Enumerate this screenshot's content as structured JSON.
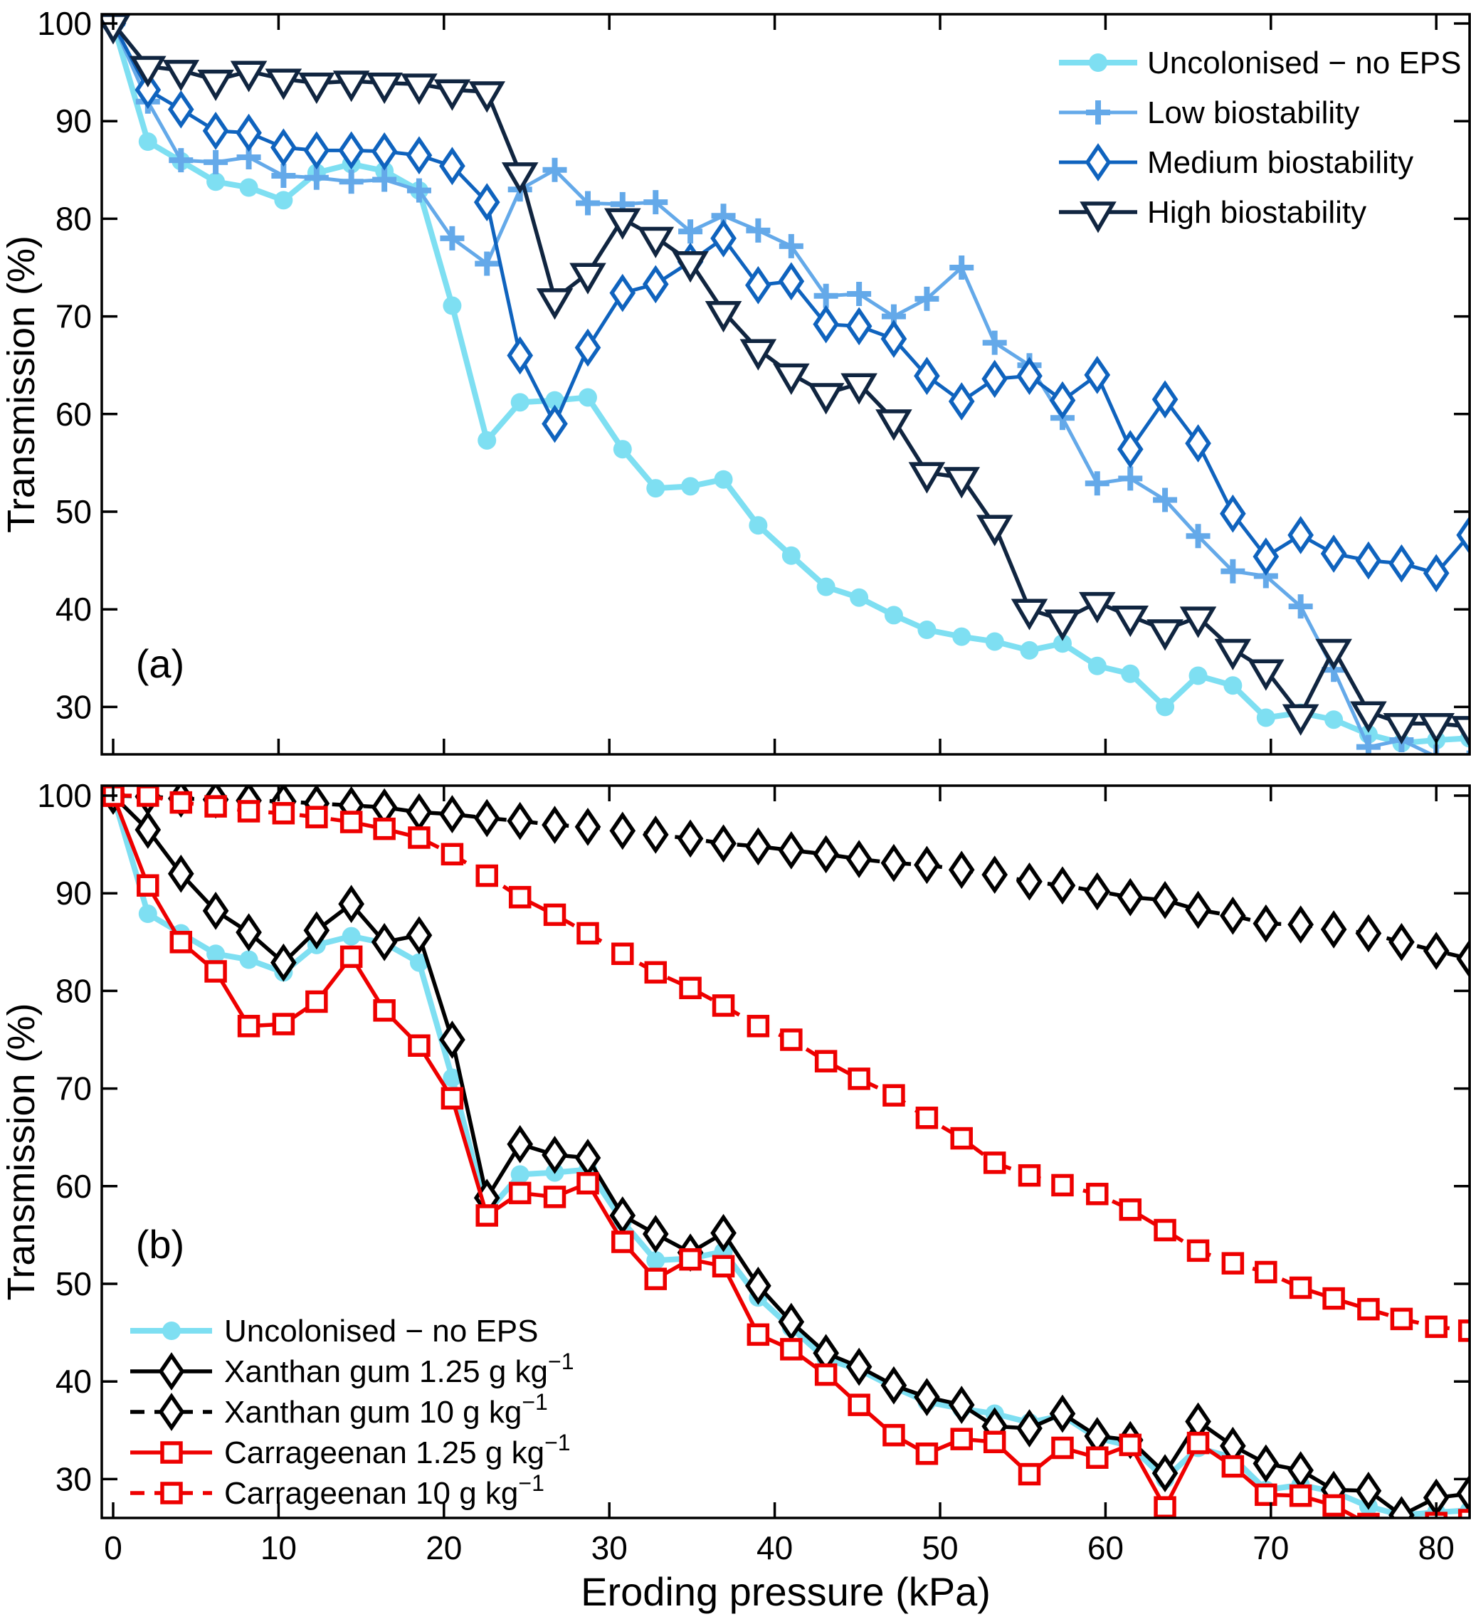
{
  "figure": {
    "background": "#ffffff",
    "x_axis_label": "Eroding pressure (kPa)",
    "y_axis_label": "Transmission (%)"
  },
  "chart_data": {
    "type": "line",
    "x_label": "Eroding pressure (kPa)",
    "y_label": "Transmission (%)",
    "x_ticks": [
      0,
      10,
      20,
      30,
      40,
      50,
      60,
      70,
      80
    ],
    "y_ticks": [
      30,
      40,
      50,
      60,
      70,
      80,
      90,
      100
    ],
    "x_lim": [
      0,
      82
    ],
    "y_lim": [
      25,
      101
    ],
    "grid": false,
    "x_kpa": [
      0,
      2.1,
      4.1,
      6.2,
      8.2,
      10.3,
      12.3,
      14.4,
      16.4,
      18.5,
      20.5,
      22.6,
      24.6,
      26.7,
      28.7,
      30.8,
      32.8,
      34.9,
      36.9,
      39,
      41,
      43.1,
      45.1,
      47.2,
      49.2,
      51.3,
      53.3,
      55.4,
      57.4,
      59.5,
      61.5,
      63.6,
      65.6,
      67.7,
      69.7,
      71.8,
      73.8,
      75.9,
      77.9,
      80,
      82
    ],
    "panel_a": {
      "tag": "(a)",
      "show_x_tick_labels": false,
      "legend_position": "top-right",
      "series": [
        {
          "id": "uncolonised",
          "label": "Uncolonised − no EPS",
          "color": "#7EDFF2",
          "marker": "circle",
          "dashed": false,
          "line_width": 8,
          "values": [
            100,
            87.9,
            85.9,
            83.8,
            83.2,
            81.9,
            84.7,
            85.6,
            84.9,
            82.9,
            71.1,
            57.3,
            61.2,
            61.4,
            61.7,
            56.4,
            52.4,
            52.6,
            53.3,
            48.6,
            45.5,
            42.3,
            41.2,
            39.4,
            37.9,
            37.2,
            36.7,
            35.8,
            36.5,
            34.2,
            33.4,
            30.0,
            33.2,
            32.2,
            28.9,
            29.4,
            28.7,
            27.2,
            26.3,
            26.6,
            26.8
          ]
        },
        {
          "id": "low-biostability",
          "label": "Low biostability",
          "color": "#64A9E9",
          "marker": "plus",
          "dashed": false,
          "line_width": 5,
          "values": [
            100,
            92.0,
            86.0,
            85.8,
            86.3,
            84.4,
            84.2,
            83.8,
            84.0,
            82.9,
            78.0,
            75.4,
            83.0,
            85.0,
            81.6,
            81.5,
            81.7,
            78.7,
            80.3,
            78.8,
            77.2,
            72.1,
            72.3,
            70.0,
            71.8,
            75.0,
            67.3,
            65.0,
            59.6,
            52.9,
            53.4,
            51.2,
            47.5,
            43.9,
            43.4,
            40.3,
            33.8,
            25.9,
            26.6,
            24.9,
            24.3
          ]
        },
        {
          "id": "medium-biostability",
          "label": "Medium biostability",
          "color": "#0F63BE",
          "marker": "diamond",
          "dashed": false,
          "line_width": 5,
          "values": [
            100,
            93.2,
            91.2,
            89.0,
            88.8,
            87.3,
            87.0,
            87.0,
            86.9,
            86.5,
            85.4,
            81.7,
            66.0,
            59.0,
            66.8,
            72.4,
            73.3,
            75.6,
            78.0,
            73.2,
            73.6,
            69.2,
            69.0,
            67.7,
            63.9,
            61.3,
            63.6,
            63.9,
            61.4,
            64.0,
            56.4,
            61.5,
            57.0,
            49.8,
            45.4,
            47.6,
            45.7,
            45.0,
            44.7,
            43.7,
            47.6
          ]
        },
        {
          "id": "high-biostability",
          "label": "High biostability",
          "color": "#102540",
          "marker": "triangle-down",
          "dashed": false,
          "line_width": 5.5,
          "values": [
            100,
            95.6,
            95.2,
            94.2,
            95.1,
            94.3,
            93.9,
            94.1,
            93.9,
            93.8,
            93.2,
            93.0,
            84.7,
            71.8,
            74.4,
            80.0,
            78.1,
            75.6,
            70.5,
            66.6,
            64.1,
            62.1,
            63.1,
            59.4,
            54.0,
            53.5,
            48.6,
            40.0,
            38.9,
            40.7,
            39.3,
            37.9,
            39.2,
            35.9,
            33.8,
            29.2,
            35.9,
            29.5,
            28.3,
            28.3,
            28.0
          ]
        }
      ]
    },
    "panel_b": {
      "tag": "(b)",
      "show_x_tick_labels": true,
      "legend_position": "bottom-left",
      "series": [
        {
          "id": "uncolonised",
          "label": "Uncolonised − no EPS",
          "label_sup": "",
          "color": "#7EDFF2",
          "marker": "circle",
          "dashed": false,
          "line_width": 8,
          "values": [
            100,
            87.9,
            85.9,
            83.8,
            83.2,
            81.9,
            84.7,
            85.6,
            84.9,
            82.9,
            71.1,
            57.3,
            61.2,
            61.4,
            61.7,
            56.4,
            52.4,
            52.6,
            53.3,
            48.6,
            45.5,
            42.3,
            41.2,
            39.4,
            37.9,
            37.2,
            36.7,
            35.8,
            36.5,
            34.2,
            33.4,
            30.0,
            33.2,
            32.2,
            28.9,
            29.4,
            28.7,
            27.2,
            26.3,
            26.6,
            26.8
          ]
        },
        {
          "id": "xanthan-gum-1-25",
          "label": "Xanthan gum 1.25 g kg",
          "label_sup": "−1",
          "color": "#000000",
          "marker": "diamond",
          "dashed": false,
          "line_width": 5.5,
          "values": [
            100,
            96.5,
            92.0,
            88.2,
            86.0,
            82.9,
            86.2,
            88.9,
            85.0,
            85.7,
            75.0,
            58.8,
            64.3,
            63.2,
            62.9,
            57.0,
            55.1,
            53.2,
            55.2,
            49.8,
            46.1,
            42.9,
            41.5,
            39.6,
            38.4,
            37.6,
            35.4,
            35.2,
            36.7,
            34.4,
            34.0,
            30.6,
            35.9,
            33.4,
            31.6,
            30.9,
            28.9,
            28.8,
            26.3,
            28.1,
            28.5
          ]
        },
        {
          "id": "xanthan-gum-10",
          "label": "Xanthan gum 10 g kg",
          "label_sup": "−1",
          "color": "#000000",
          "marker": "diamond",
          "dashed": true,
          "line_width": 5.5,
          "values": [
            100,
            99.9,
            99.7,
            99.6,
            99.5,
            99.4,
            99.2,
            99.0,
            98.8,
            98.3,
            98.1,
            97.7,
            97.4,
            97.0,
            96.8,
            96.4,
            96.0,
            95.6,
            95.1,
            94.8,
            94.4,
            94.0,
            93.5,
            93.1,
            92.9,
            92.4,
            91.9,
            91.2,
            90.8,
            90.2,
            89.6,
            89.3,
            88.3,
            87.7,
            86.9,
            86.8,
            86.3,
            85.9,
            85.0,
            84.1,
            83.3
          ]
        },
        {
          "id": "carrageenan-1-25",
          "label": "Carrageenan 1.25 g kg",
          "label_sup": "−1",
          "color": "#EE0000",
          "marker": "square",
          "dashed": false,
          "line_width": 5.5,
          "values": [
            100,
            90.8,
            85.0,
            82.0,
            76.4,
            76.6,
            78.9,
            83.5,
            78.0,
            74.4,
            69.0,
            57.0,
            59.3,
            58.9,
            60.3,
            54.3,
            50.5,
            52.5,
            51.8,
            44.8,
            43.3,
            40.7,
            37.6,
            34.5,
            32.6,
            34.1,
            33.8,
            30.5,
            33.2,
            32.2,
            33.5,
            27.1,
            33.7,
            31.3,
            28.4,
            28.3,
            27.3,
            25.4,
            24.9,
            25.5,
            25.8
          ]
        },
        {
          "id": "carrageenan-10",
          "label": "Carrageenan 10 g kg",
          "label_sup": "−1",
          "color": "#EE0000",
          "marker": "square",
          "dashed": true,
          "line_width": 5.5,
          "values": [
            100,
            100.0,
            99.3,
            98.9,
            98.4,
            98.2,
            97.8,
            97.3,
            96.6,
            95.7,
            94.0,
            91.8,
            89.6,
            87.8,
            85.9,
            83.8,
            81.9,
            80.3,
            78.5,
            76.4,
            75.0,
            72.8,
            71.0,
            69.3,
            67.0,
            64.9,
            62.4,
            61.1,
            60.1,
            59.2,
            57.6,
            55.5,
            53.4,
            52.1,
            51.2,
            49.6,
            48.5,
            47.4,
            46.4,
            45.6,
            45.2
          ]
        }
      ]
    }
  }
}
